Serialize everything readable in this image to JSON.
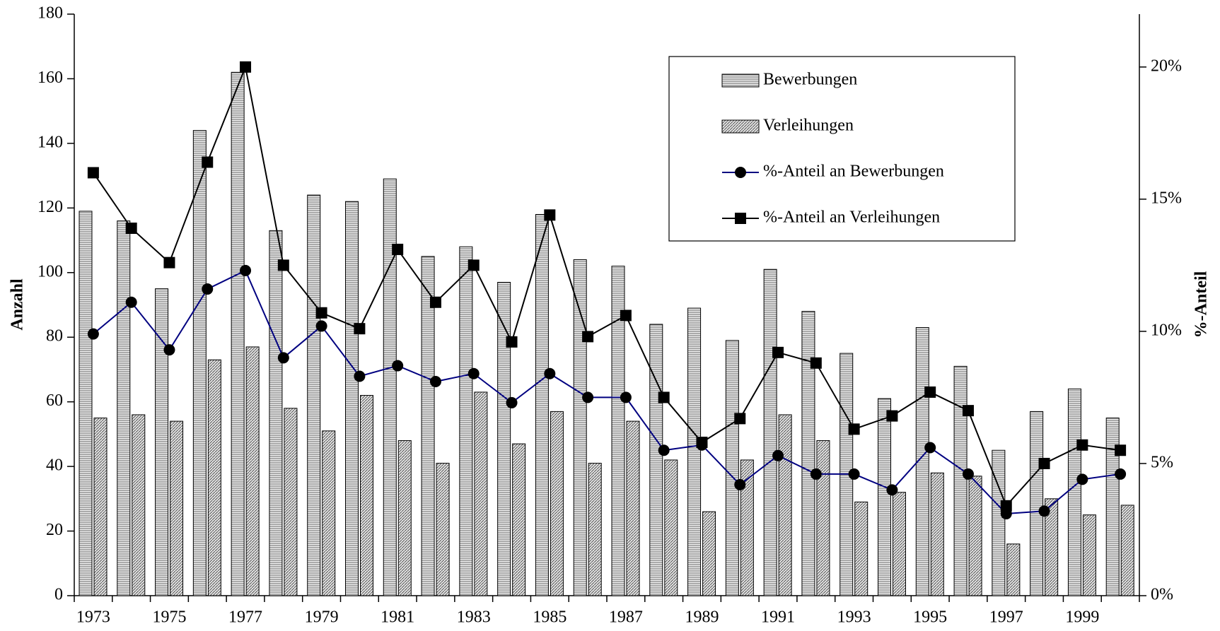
{
  "chart_data": {
    "type": "bar-line",
    "y_label": "Anzahl",
    "y2_label": "%-Anteil",
    "categories": [
      "1973",
      null,
      "1975",
      null,
      "1977",
      null,
      "1979",
      null,
      "1981",
      null,
      "1983",
      null,
      "1985",
      null,
      "1987",
      null,
      "1989",
      null,
      "1991",
      null,
      "1993",
      null,
      "1995",
      null,
      "1997",
      null,
      "1999",
      null
    ],
    "series": [
      {
        "name": "Bewerbungen",
        "type": "bar",
        "pattern": "horizontal",
        "color": "#000000",
        "values": [
          119,
          116,
          95,
          144,
          162,
          113,
          124,
          122,
          129,
          105,
          108,
          97,
          118,
          104,
          102,
          84,
          89,
          79,
          101,
          88,
          75,
          61,
          83,
          71,
          45,
          57,
          64,
          55
        ]
      },
      {
        "name": "Verleihungen",
        "type": "bar",
        "pattern": "diagonal",
        "color": "#000000",
        "values": [
          55,
          56,
          54,
          73,
          77,
          58,
          51,
          62,
          48,
          41,
          63,
          47,
          57,
          41,
          54,
          42,
          26,
          42,
          56,
          48,
          29,
          32,
          38,
          37,
          16,
          30,
          25,
          28
        ]
      },
      {
        "name": "%-Anteil an Bewerbungen",
        "type": "line",
        "marker": "circle",
        "color": "#000080",
        "axis": "y2",
        "values": [
          9.9,
          11.1,
          9.3,
          11.6,
          12.3,
          9.0,
          10.2,
          8.3,
          8.7,
          8.1,
          8.4,
          7.3,
          8.4,
          7.5,
          7.5,
          5.5,
          5.7,
          4.2,
          5.3,
          4.6,
          4.6,
          4.0,
          5.6,
          4.6,
          3.1,
          3.2,
          4.4,
          4.6
        ]
      },
      {
        "name": "%-Anteil an Verleihungen",
        "type": "line",
        "marker": "square",
        "color": "#000000",
        "axis": "y2",
        "values": [
          16.0,
          13.9,
          12.6,
          16.4,
          20.0,
          12.5,
          10.7,
          10.1,
          13.1,
          11.1,
          12.5,
          9.6,
          14.4,
          9.8,
          10.6,
          7.5,
          5.8,
          6.7,
          9.2,
          8.8,
          6.3,
          6.8,
          7.7,
          7.0,
          3.4,
          5.0,
          5.7,
          5.5
        ]
      }
    ],
    "ylim": [
      0,
      180
    ],
    "yticks": [
      0,
      20,
      40,
      60,
      80,
      100,
      120,
      140,
      160,
      180
    ],
    "y2lim": [
      0,
      22
    ],
    "y2ticks": [
      {
        "value": 0,
        "label": "0%"
      },
      {
        "value": 5,
        "label": "5%"
      },
      {
        "value": 10,
        "label": "10%"
      },
      {
        "value": 15,
        "label": "15%"
      },
      {
        "value": 20,
        "label": "20%"
      }
    ],
    "legend": "top-right"
  }
}
